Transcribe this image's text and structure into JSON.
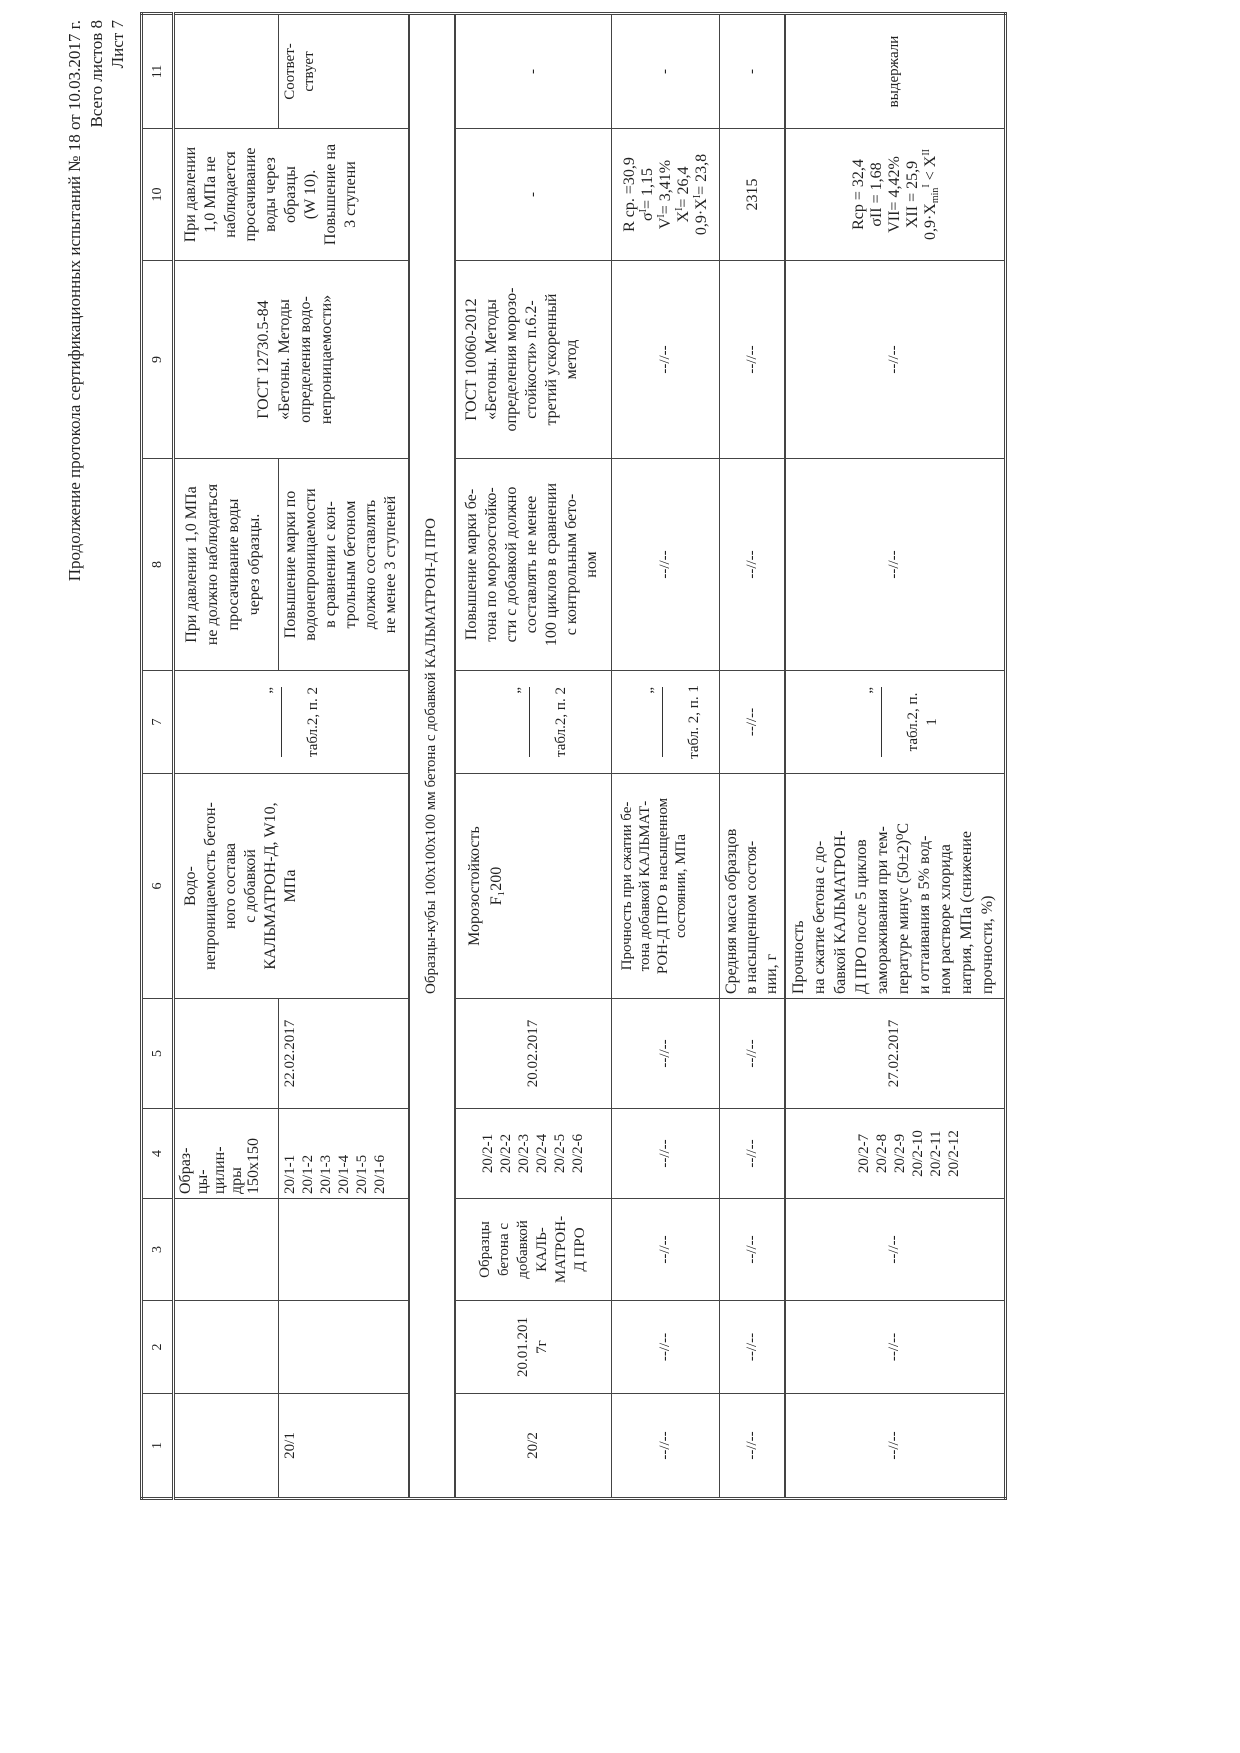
{
  "header": {
    "title": "Продолжение  протокола сертификационных  испытаний № 18 от 10.03.2017 г.",
    "total_sheets": "Всего листов 8",
    "sheet": "Лист 7"
  },
  "column_numbers": [
    "1",
    "2",
    "3",
    "4",
    "5",
    "6",
    "7",
    "8",
    "9",
    "10",
    "11"
  ],
  "ditto": "--//--",
  "dash": "-",
  "ref_quote": "”",
  "row_20_1": {
    "id": "20/1",
    "sample_type": "Образ-\nцы-\nцилин-\nдры\n150x150",
    "samples": "20/1-1\n20/1-2\n20/1-3\n20/1-4\n20/1-5\n20/1-6",
    "date": "22.02.2017",
    "property": "Водо-\nнепроницаемость бетон-\nного состава\nс добавкой\nКАЛЬМАТРОН-Д, W10,\nМПа",
    "ref": "табл.2, п. 2",
    "requirement_1": "При давлении 1,0 МПа\nне должно наблюдаться\nпросачивание воды\nчерез образцы.",
    "requirement_2": "Повышение марки по\nводонепроницаемости\nв сравнении с кон-\nтрольным бетоном\nдолжно составлять\nне менее 3 ступеней",
    "method": "ГОСТ 12730.5-84\n«Бетоны. Методы\nопределения водо-\nнепроницаемости»",
    "result": "При давлении\n1,0 МПа не\nнаблюдается\nпросачивание\nводы через\nобразцы\n(W 10).\nПовышение на\n3 ступени",
    "conclusion": "Соответ-\nствует"
  },
  "section_title": "Образцы-кубы 100x100x100 мм  бетона с добавкой КАЛЬМАТРОН-Д ПРО",
  "row_20_2": {
    "id": "20/2",
    "made_date": "20.01.201\n7г",
    "description": "Образцы\nбетона с\nдобавкой\nКАЛЬ-\nМАТРОН-\nД ПРО",
    "samples": "20/2-1\n20/2-2\n20/2-3\n20/2-4\n20/2-5\n20/2-6",
    "date": "20.02.2017",
    "property": "Морозостойкость\nF₁200",
    "ref": "табл.2, п. 2",
    "requirement": "Повышение марки бе-\nтона по морозостойко-\nсти с добавкой должно\nсоставлять не менее\n100 циклов в сравнении\nс контрольным бето-\nном",
    "method": "ГОСТ 10060-2012\n«Бетоны. Методы\nопределения морозо-\nстойкости» п.6.2-\nтретий ускоренный\nметод"
  },
  "row_strength_saturated": {
    "property": "Прочность при сжатии бе-\nтона добавкой КАЛЬМАТ-\nРОН-Д ПРО в насыщенном\nсостоянии, МПа",
    "ref": "табл. 2, п. 1",
    "stats": [
      {
        "base": "R ср. =30,9",
        "sup": "",
        "rest": ""
      },
      {
        "base": "σ",
        "sup": "I",
        "rest": "= 1,15"
      },
      {
        "base": "V",
        "sup": "I",
        "rest": "= 3,41%"
      },
      {
        "base": "X",
        "sup": "I",
        "rest": "= 26,4"
      },
      {
        "base": "0,9·X",
        "sup": "I",
        "rest": "= 23,8"
      }
    ]
  },
  "row_mass": {
    "property": "Средняя масса образцов\nв насыщенном состоя-\nнии, г",
    "result": "2315"
  },
  "row_strength_after_cycles": {
    "samples": "20/2-7\n20/2-8\n20/2-9\n20/2-10\n20/2-11\n20/2-12",
    "date": "27.02.2017",
    "property": "Прочность\nна сжатие бетона с до-\nбавкой КАЛЬМАТРОН-\nД ПРО после 5 циклов\nзамораживания при тем-\nпературе минус (50±2)⁰С\nи оттаивания в 5% вод-\nном растворе хлорида\nнатрия, МПа (снижение\nпрочности, %)",
    "ref": "табл.2, п.\n1",
    "stats": [
      "Rср = 32,4",
      "σII = 1,68",
      "VII= 4,42%",
      "XII = 25,9"
    ],
    "last_stat": {
      "a": "0,9·X",
      "sub": "min",
      "sup": "I",
      "b": " < X",
      "sup2": "II"
    },
    "conclusion": "выдержали"
  }
}
